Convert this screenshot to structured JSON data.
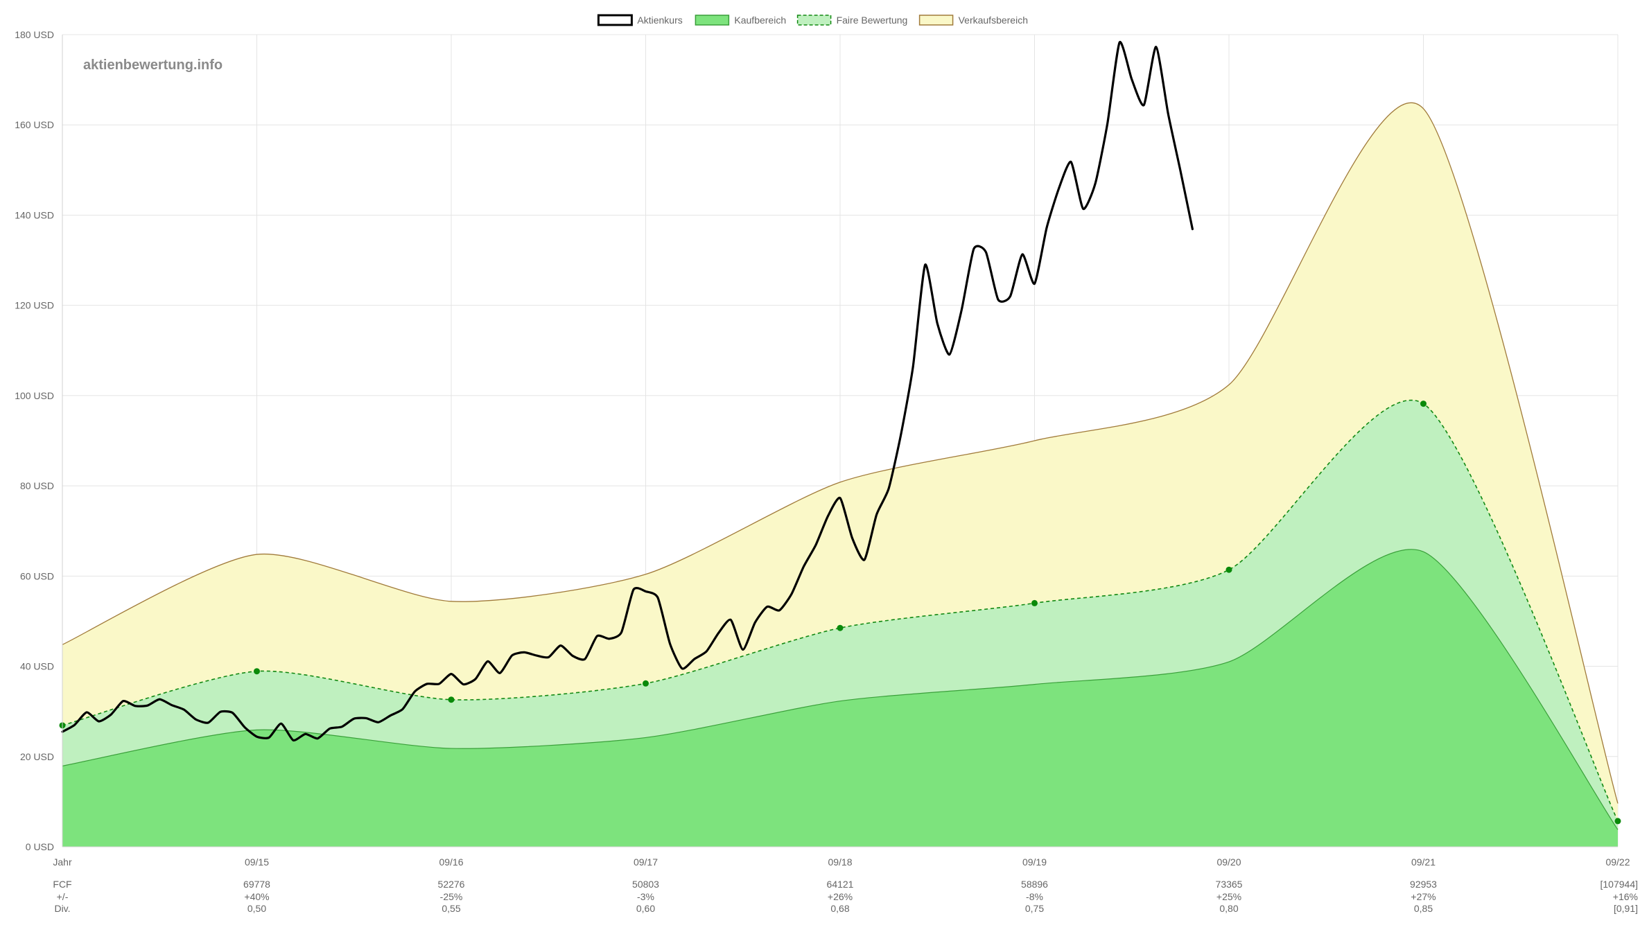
{
  "watermark": "aktienbewertung.info",
  "legend": [
    {
      "label": "Aktienkurs",
      "fill": "#ffffff",
      "stroke": "#000000",
      "dashed": false
    },
    {
      "label": "Kaufbereich",
      "fill": "#7de37d",
      "stroke": "#3a9e3a",
      "dashed": false
    },
    {
      "label": "Faire Bewertung",
      "fill": "#bff0bf",
      "stroke": "#118811",
      "dashed": true
    },
    {
      "label": "Verkaufsbereich",
      "fill": "#faf8c8",
      "stroke": "#a07a3a",
      "dashed": false
    }
  ],
  "colors": {
    "sell_fill": "#faf8c8",
    "sell_line": "#a07a3a",
    "fair_fill": "#bff0bf",
    "fair_line": "#118811",
    "buy_fill": "#7de37d",
    "buy_line": "#3aa03a",
    "price_line": "#000000",
    "grid": "#e4e4e4"
  },
  "chart_data": {
    "type": "area",
    "y_unit": "USD",
    "ylim": [
      0,
      180
    ],
    "y_ticks": [
      0,
      20,
      40,
      60,
      80,
      100,
      120,
      140,
      160,
      180
    ],
    "y_tick_labels": [
      "0 USD",
      "20 USD",
      "40 USD",
      "60 USD",
      "80 USD",
      "100 USD",
      "120 USD",
      "140 USD",
      "160 USD",
      "180 USD"
    ],
    "x_first_label": "Jahr",
    "x_labels": [
      "09/15",
      "09/16",
      "09/17",
      "09/18",
      "09/19",
      "09/20",
      "09/21",
      "09/22"
    ],
    "grid": true,
    "legend_position": "top",
    "anchors_x": [
      0,
      1,
      2,
      3,
      4,
      5,
      6,
      7,
      8
    ],
    "series": [
      {
        "name": "Verkaufsbereich",
        "values": [
          44.8,
          64.8,
          54.4,
          60.4,
          80.8,
          90.0,
          102.4,
          163.6,
          9.6
        ]
      },
      {
        "name": "Faire Bewertung",
        "values": [
          26.9,
          38.9,
          32.6,
          36.2,
          48.5,
          54.0,
          61.4,
          98.2,
          5.7
        ]
      },
      {
        "name": "Kaufbereich",
        "values": [
          17.9,
          25.9,
          21.8,
          24.2,
          32.3,
          36.0,
          41.0,
          65.4,
          3.8
        ]
      },
      {
        "name": "Aktienkurs",
        "x_start": 0,
        "x_step": 0.0625,
        "values": [
          25.5,
          27.0,
          29.8,
          27.8,
          29.3,
          32.3,
          31.2,
          31.3,
          32.7,
          31.4,
          30.4,
          28.2,
          27.5,
          29.9,
          29.7,
          26.5,
          24.4,
          24.2,
          27.3,
          23.6,
          25.0,
          24.0,
          26.2,
          26.6,
          28.4,
          28.5,
          27.6,
          29.1,
          30.5,
          34.4,
          36.1,
          36.1,
          38.3,
          36.0,
          37.2,
          41.1,
          38.5,
          42.4,
          43.1,
          42.4,
          42.0,
          44.6,
          42.3,
          41.6,
          46.7,
          46.1,
          47.5,
          57.0,
          56.6,
          55.2,
          45.0,
          39.5,
          41.6,
          43.3,
          47.4,
          50.3,
          43.7,
          49.7,
          53.2,
          52.4,
          56.0,
          62.1,
          66.9,
          73.3,
          77.3,
          68.4,
          63.6,
          73.6,
          79.4,
          91.3,
          106.4,
          129.0,
          116.0,
          109.1,
          119.0,
          132.5,
          131.8,
          121.3,
          122.0,
          131.3,
          124.8,
          137.2,
          145.9,
          151.8,
          141.4,
          147.0,
          160.3,
          178.3,
          170.1,
          164.4,
          177.3,
          162.4,
          149.9,
          136.9
        ]
      }
    ],
    "footer_rows": [
      {
        "label": "FCF",
        "values": [
          "69778",
          "52276",
          "50803",
          "64121",
          "58896",
          "73365",
          "92953",
          "[107944]"
        ]
      },
      {
        "label": "+/-",
        "values": [
          "+40%",
          "-25%",
          "-3%",
          "+26%",
          "-8%",
          "+25%",
          "+27%",
          "+16%"
        ]
      },
      {
        "label": "Div.",
        "values": [
          "0,50",
          "0,55",
          "0,60",
          "0,68",
          "0,75",
          "0,80",
          "0,85",
          "[0,91]"
        ]
      }
    ]
  }
}
